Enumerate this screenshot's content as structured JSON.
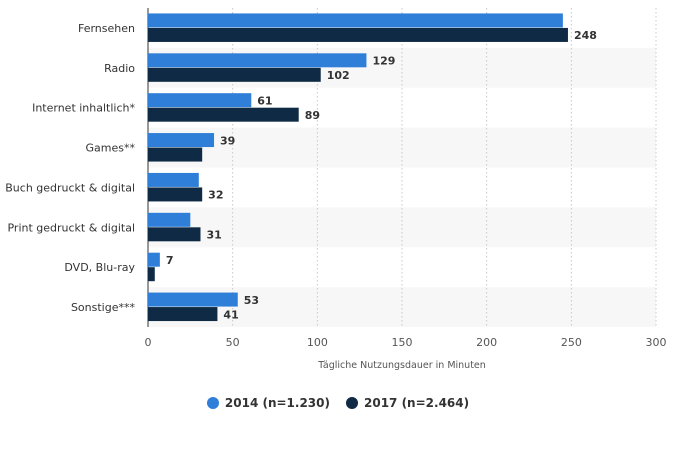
{
  "chart_data": {
    "type": "bar",
    "orientation": "horizontal",
    "categories": [
      "Fernsehen",
      "Radio",
      "Internet inhaltlich*",
      "Games**",
      "Buch gedruckt & digital",
      "Print gedruckt & digital",
      "DVD, Blu-ray",
      "Sonstige***"
    ],
    "series": [
      {
        "name": "2014 (n=1.230)",
        "color": "#2f7ed8",
        "values": [
          245,
          129,
          61,
          39,
          30,
          25,
          7,
          53
        ],
        "labels": [
          "",
          "129",
          "61",
          "39",
          "",
          "",
          "7",
          "53"
        ]
      },
      {
        "name": "2017 (n=2.464)",
        "color": "#0f2a44",
        "values": [
          248,
          102,
          89,
          32,
          32,
          31,
          4,
          41
        ],
        "labels": [
          "248",
          "102",
          "89",
          "",
          "32",
          "31",
          "",
          "41"
        ]
      }
    ],
    "xlabel": "Tägliche Nutzungsdauer in Minuten",
    "xlim": [
      0,
      300
    ],
    "xticks": [
      "0",
      "50",
      "100",
      "150",
      "200",
      "250",
      "300"
    ],
    "grid": true,
    "legend_position": "bottom-center"
  }
}
